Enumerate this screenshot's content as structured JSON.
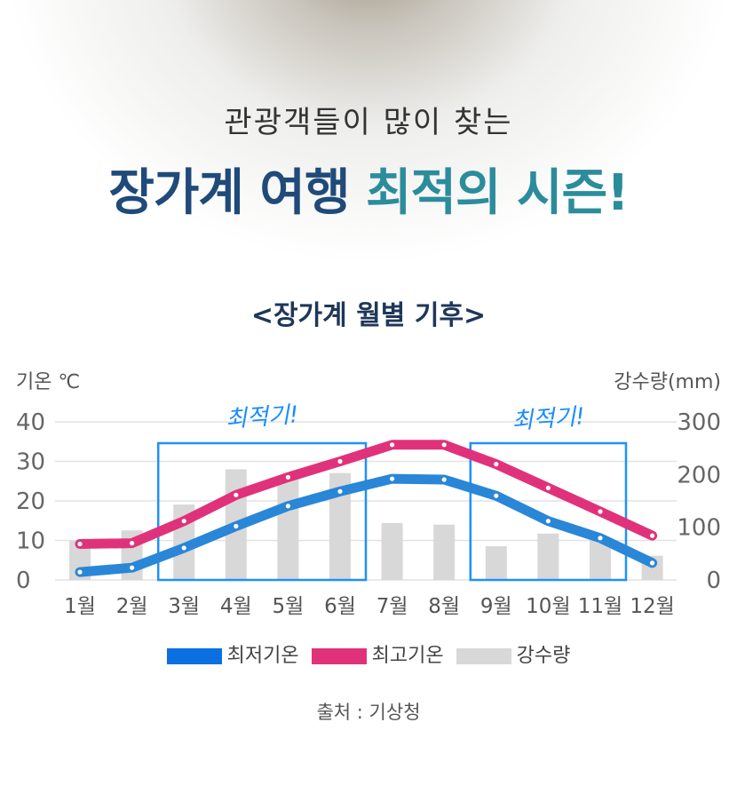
{
  "header": {
    "subtitle": "관광객들이 많이 찾는",
    "title_part1": "장가계 여행",
    "title_part2": "최적의 시즌!"
  },
  "chart_title": "<장가계 월별 기후>",
  "source": "출처 : 기상청",
  "chart_data": {
    "type": "line+bar",
    "title": "<장가계 월별 기후>",
    "ylabel_left": "기온 ℃",
    "ylabel_right": "강수량(mm)",
    "ylim_left": [
      0,
      40
    ],
    "ylim_right": [
      0,
      300
    ],
    "yticks_left": [
      "0",
      "10",
      "20",
      "30",
      "40"
    ],
    "yticks_right": [
      "0",
      "100",
      "200",
      "300"
    ],
    "categories": [
      "1월",
      "2월",
      "3월",
      "4월",
      "5월",
      "6월",
      "7월",
      "8월",
      "9월",
      "10월",
      "11월",
      "12월"
    ],
    "series": [
      {
        "name": "최저기온",
        "type": "line",
        "axis": "left",
        "color": "#2a86d6",
        "values": [
          2,
          3.1,
          8.1,
          13.6,
          18.7,
          22.4,
          25.6,
          25.4,
          21.3,
          14.9,
          10.6,
          4.3
        ]
      },
      {
        "name": "최고기온",
        "type": "line",
        "axis": "left",
        "color": "#e0327a",
        "values": [
          9.1,
          9.3,
          14.9,
          21.5,
          26,
          30,
          34.2,
          34.2,
          29.3,
          23.3,
          17.3,
          11.2
        ]
      },
      {
        "name": "강수량",
        "type": "bar",
        "axis": "right",
        "color": "#d8d8d8",
        "values": [
          74,
          94,
          143,
          210,
          191,
          203,
          108,
          105,
          64,
          88,
          75,
          46
        ]
      }
    ],
    "annotations": [
      {
        "text": "최적기!",
        "months": [
          "3월",
          "6월"
        ]
      },
      {
        "text": "최적기!",
        "months": [
          "9월",
          "11월"
        ]
      }
    ],
    "legend": "bottom"
  }
}
